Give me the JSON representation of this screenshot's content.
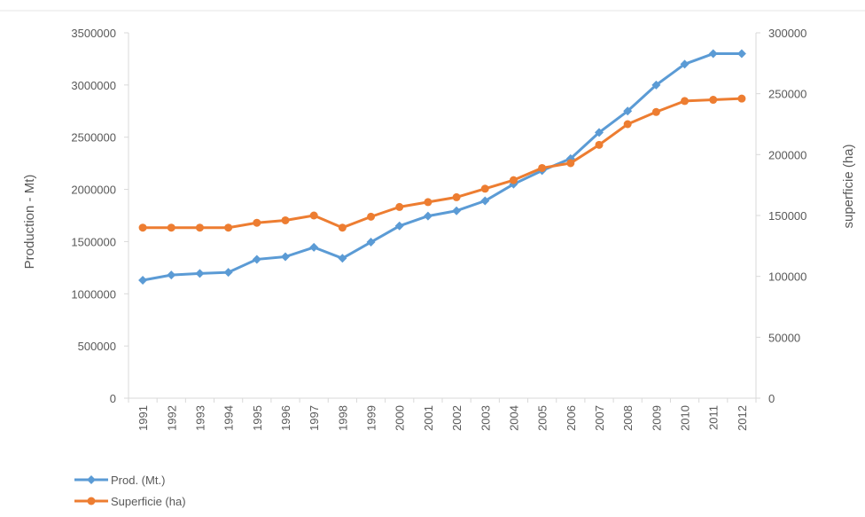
{
  "chart_data": {
    "type": "line",
    "x": [
      "1991",
      "1992",
      "1993",
      "1994",
      "1995",
      "1996",
      "1997",
      "1998",
      "1999",
      "2000",
      "2001",
      "2002",
      "2003",
      "2004",
      "2005",
      "2006",
      "2007",
      "2008",
      "2009",
      "2010",
      "2011",
      "2012"
    ],
    "series": [
      {
        "name": "Prod. (Mt.)",
        "axis": "left",
        "color": "#5b9bd5",
        "marker": "diamond",
        "values": [
          1130000,
          1180000,
          1195000,
          1205000,
          1330000,
          1355000,
          1445000,
          1340000,
          1495000,
          1650000,
          1745000,
          1795000,
          1890000,
          2050000,
          2180000,
          2295000,
          2545000,
          2750000,
          3000000,
          3200000,
          3300000,
          3300000
        ]
      },
      {
        "name": "Superficie (ha)",
        "axis": "right",
        "color": "#ed7d31",
        "marker": "circle",
        "values": [
          140000,
          140000,
          140000,
          140000,
          144000,
          146000,
          150000,
          140000,
          149000,
          157000,
          161000,
          165000,
          172000,
          179000,
          189000,
          193000,
          208000,
          225000,
          235000,
          244000,
          245000,
          246000
        ]
      }
    ],
    "ylabel": "Production - Mt)",
    "y2label": "superficie (ha)",
    "ylim": [
      0,
      3500000
    ],
    "y2lim": [
      0,
      300000
    ],
    "yticks": [
      "0",
      "500000",
      "1000000",
      "1500000",
      "2000000",
      "2500000",
      "3000000",
      "3500000"
    ],
    "y2ticks": [
      "0",
      "50000",
      "100000",
      "150000",
      "200000",
      "250000",
      "300000"
    ],
    "grid": false,
    "legend_position": "bottom-left",
    "axis_color": "#d9d9d9",
    "text_color": "#595959"
  }
}
